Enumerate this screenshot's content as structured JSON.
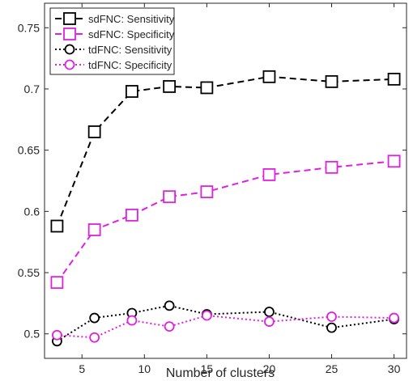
{
  "chart_data": {
    "type": "line",
    "xlabel": "Number of clusters",
    "ylabel": "",
    "xlim": [
      2,
      31
    ],
    "ylim": [
      0.48,
      0.77
    ],
    "xticks": [
      5,
      10,
      15,
      20,
      25,
      30
    ],
    "yticks": [
      0.5,
      0.55,
      0.6,
      0.65,
      0.7,
      0.75
    ],
    "xtick_labels": [
      "5",
      "10",
      "15",
      "20",
      "25",
      "30"
    ],
    "ytick_labels": [
      "0.5",
      "0.55",
      "0.6",
      "0.65",
      "0.7",
      "0.75"
    ],
    "x": [
      3,
      6,
      9,
      12,
      15,
      20,
      25,
      30
    ],
    "grid": false,
    "legend_position": "top-left",
    "series": [
      {
        "name": "sdFNC: Sensitivity",
        "color": "#000000",
        "line": "dashed",
        "marker": "square",
        "values": [
          0.588,
          0.665,
          0.698,
          0.702,
          0.701,
          0.71,
          0.706,
          0.708
        ]
      },
      {
        "name": "sdFNC: Specificity",
        "color": "#e020e0",
        "line": "dashed",
        "marker": "square",
        "values": [
          0.542,
          0.585,
          0.597,
          0.612,
          0.616,
          0.63,
          0.636,
          0.641
        ]
      },
      {
        "name": "tdFNC: Sensitivity",
        "color": "#000000",
        "line": "dotted",
        "marker": "circle",
        "values": [
          0.494,
          0.513,
          0.517,
          0.523,
          0.516,
          0.518,
          0.505,
          0.512
        ]
      },
      {
        "name": "tdFNC: Specificity",
        "color": "#e020e0",
        "line": "dotted",
        "marker": "circle",
        "values": [
          0.499,
          0.497,
          0.511,
          0.506,
          0.515,
          0.51,
          0.514,
          0.513
        ]
      }
    ]
  }
}
